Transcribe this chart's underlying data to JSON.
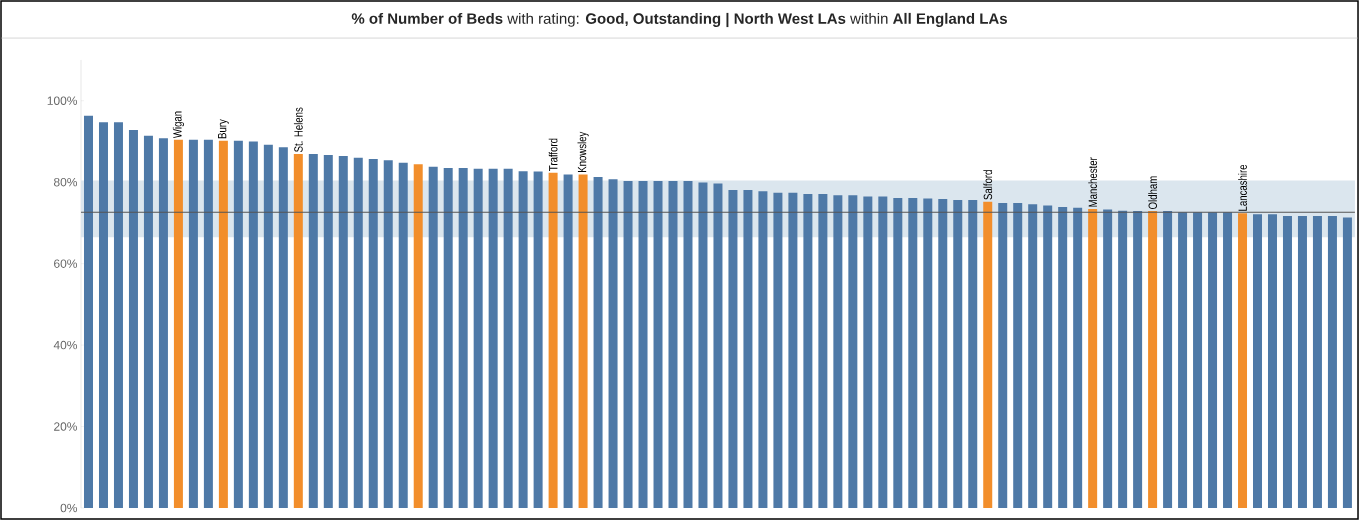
{
  "chart_data": {
    "type": "bar",
    "title": "**% of Number of Beds** with rating: **Good, Outstanding | North West LAs** within **All England LAs**",
    "categories": [
      null,
      null,
      null,
      null,
      null,
      null,
      "Wigan",
      null,
      null,
      "Bury",
      null,
      null,
      null,
      null,
      "St. Helens",
      null,
      null,
      null,
      null,
      null,
      null,
      null,
      null,
      null,
      null,
      null,
      null,
      null,
      null,
      null,
      null,
      "Trafford",
      null,
      "Knowsley",
      null,
      null,
      null,
      null,
      null,
      null,
      null,
      null,
      null,
      null,
      null,
      null,
      null,
      null,
      null,
      null,
      null,
      null,
      null,
      null,
      null,
      null,
      null,
      null,
      null,
      null,
      "Salford",
      null,
      null,
      null,
      null,
      null,
      null,
      "Manchester",
      null,
      null,
      null,
      "Oldham",
      null,
      null,
      null,
      null,
      null,
      "Lancashire",
      null,
      null,
      null,
      null,
      null,
      null,
      null
    ],
    "values": [
      96.3,
      94.7,
      94.7,
      92.8,
      91.4,
      90.8,
      90.4,
      90.4,
      90.4,
      90.2,
      90.2,
      90.0,
      89.2,
      88.6,
      86.9,
      86.9,
      86.7,
      86.4,
      86.0,
      85.7,
      85.4,
      84.8,
      84.4,
      83.8,
      83.5,
      83.5,
      83.3,
      83.3,
      83.3,
      82.7,
      82.6,
      82.3,
      81.9,
      81.9,
      81.3,
      80.7,
      80.3,
      80.3,
      80.3,
      80.3,
      80.3,
      79.9,
      79.7,
      78.1,
      78.1,
      77.8,
      77.4,
      77.4,
      77.1,
      77.1,
      76.8,
      76.8,
      76.5,
      76.5,
      76.1,
      76.1,
      76.0,
      75.9,
      75.6,
      75.6,
      75.2,
      74.9,
      74.9,
      74.6,
      74.3,
      73.9,
      73.7,
      73.4,
      73.3,
      73.0,
      72.9,
      72.9,
      72.9,
      72.6,
      72.6,
      72.6,
      72.6,
      72.4,
      72.1,
      72.1,
      71.7,
      71.7,
      71.7,
      71.7,
      71.3
    ],
    "colors": [
      "#4e79a7",
      "#4e79a7",
      "#4e79a7",
      "#4e79a7",
      "#4e79a7",
      "#4e79a7",
      "#f28e2b",
      "#4e79a7",
      "#4e79a7",
      "#f28e2b",
      "#4e79a7",
      "#4e79a7",
      "#4e79a7",
      "#4e79a7",
      "#f28e2b",
      "#4e79a7",
      "#4e79a7",
      "#4e79a7",
      "#4e79a7",
      "#4e79a7",
      "#4e79a7",
      "#4e79a7",
      "#f28e2b",
      "#4e79a7",
      "#4e79a7",
      "#4e79a7",
      "#4e79a7",
      "#4e79a7",
      "#4e79a7",
      "#4e79a7",
      "#4e79a7",
      "#f28e2b",
      "#4e79a7",
      "#f28e2b",
      "#4e79a7",
      "#4e79a7",
      "#4e79a7",
      "#4e79a7",
      "#4e79a7",
      "#4e79a7",
      "#4e79a7",
      "#4e79a7",
      "#4e79a7",
      "#4e79a7",
      "#4e79a7",
      "#4e79a7",
      "#4e79a7",
      "#4e79a7",
      "#4e79a7",
      "#4e79a7",
      "#4e79a7",
      "#4e79a7",
      "#4e79a7",
      "#4e79a7",
      "#4e79a7",
      "#4e79a7",
      "#4e79a7",
      "#4e79a7",
      "#4e79a7",
      "#4e79a7",
      "#f28e2b",
      "#4e79a7",
      "#4e79a7",
      "#4e79a7",
      "#4e79a7",
      "#4e79a7",
      "#4e79a7",
      "#f28e2b",
      "#4e79a7",
      "#4e79a7",
      "#4e79a7",
      "#f28e2b",
      "#4e79a7",
      "#4e79a7",
      "#4e79a7",
      "#4e79a7",
      "#4e79a7",
      "#f28e2b",
      "#4e79a7",
      "#4e79a7",
      "#4e79a7",
      "#4e79a7",
      "#4e79a7",
      "#4e79a7",
      "#4e79a7"
    ],
    "ylim": [
      0,
      110
    ],
    "yticks": [
      {
        "value": 0,
        "label": "0%"
      },
      {
        "value": 20,
        "label": "20%"
      },
      {
        "value": 40,
        "label": "40%"
      },
      {
        "value": 60,
        "label": "60%"
      },
      {
        "value": 80,
        "label": "80%"
      },
      {
        "value": 100,
        "label": "100%"
      }
    ],
    "ref_lines": [
      {
        "axis": "y",
        "value": 72.6,
        "color": "#555555"
      }
    ],
    "bands": [
      {
        "axis": "y",
        "from": 66.5,
        "to": 80.4,
        "color": "#dbe6ee"
      }
    ]
  }
}
